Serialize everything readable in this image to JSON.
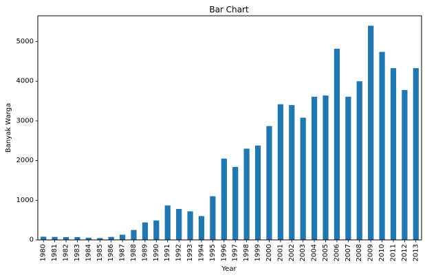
{
  "chart_data": {
    "type": "bar",
    "title": "Bar Chart",
    "xlabel": "Year",
    "ylabel": "Banyak Warga",
    "ylim": [
      0,
      5650
    ],
    "yticks": [
      0,
      1000,
      2000,
      3000,
      4000,
      5000
    ],
    "ytick_labels": [
      "0",
      "1000",
      "2000",
      "3000",
      "4000",
      "5000"
    ],
    "categories": [
      "1980",
      "1981",
      "1982",
      "1983",
      "1984",
      "1985",
      "1986",
      "1987",
      "1988",
      "1989",
      "1990",
      "1991",
      "1992",
      "1993",
      "1994",
      "1995",
      "1996",
      "1997",
      "1998",
      "1999",
      "2000",
      "2001",
      "2002",
      "2003",
      "2004",
      "2005",
      "2006",
      "2007",
      "2008",
      "2009",
      "2010",
      "2011",
      "2012",
      "2013"
    ],
    "values": [
      80,
      75,
      70,
      70,
      55,
      45,
      75,
      130,
      250,
      440,
      490,
      870,
      780,
      720,
      600,
      1100,
      2050,
      1840,
      2300,
      2380,
      2870,
      3420,
      3400,
      3080,
      3610,
      3640,
      4820,
      3610,
      4000,
      5400,
      4740,
      4330,
      3780,
      4330
    ],
    "bar_color": "#1f77b4",
    "grid": false,
    "legend": "none"
  }
}
